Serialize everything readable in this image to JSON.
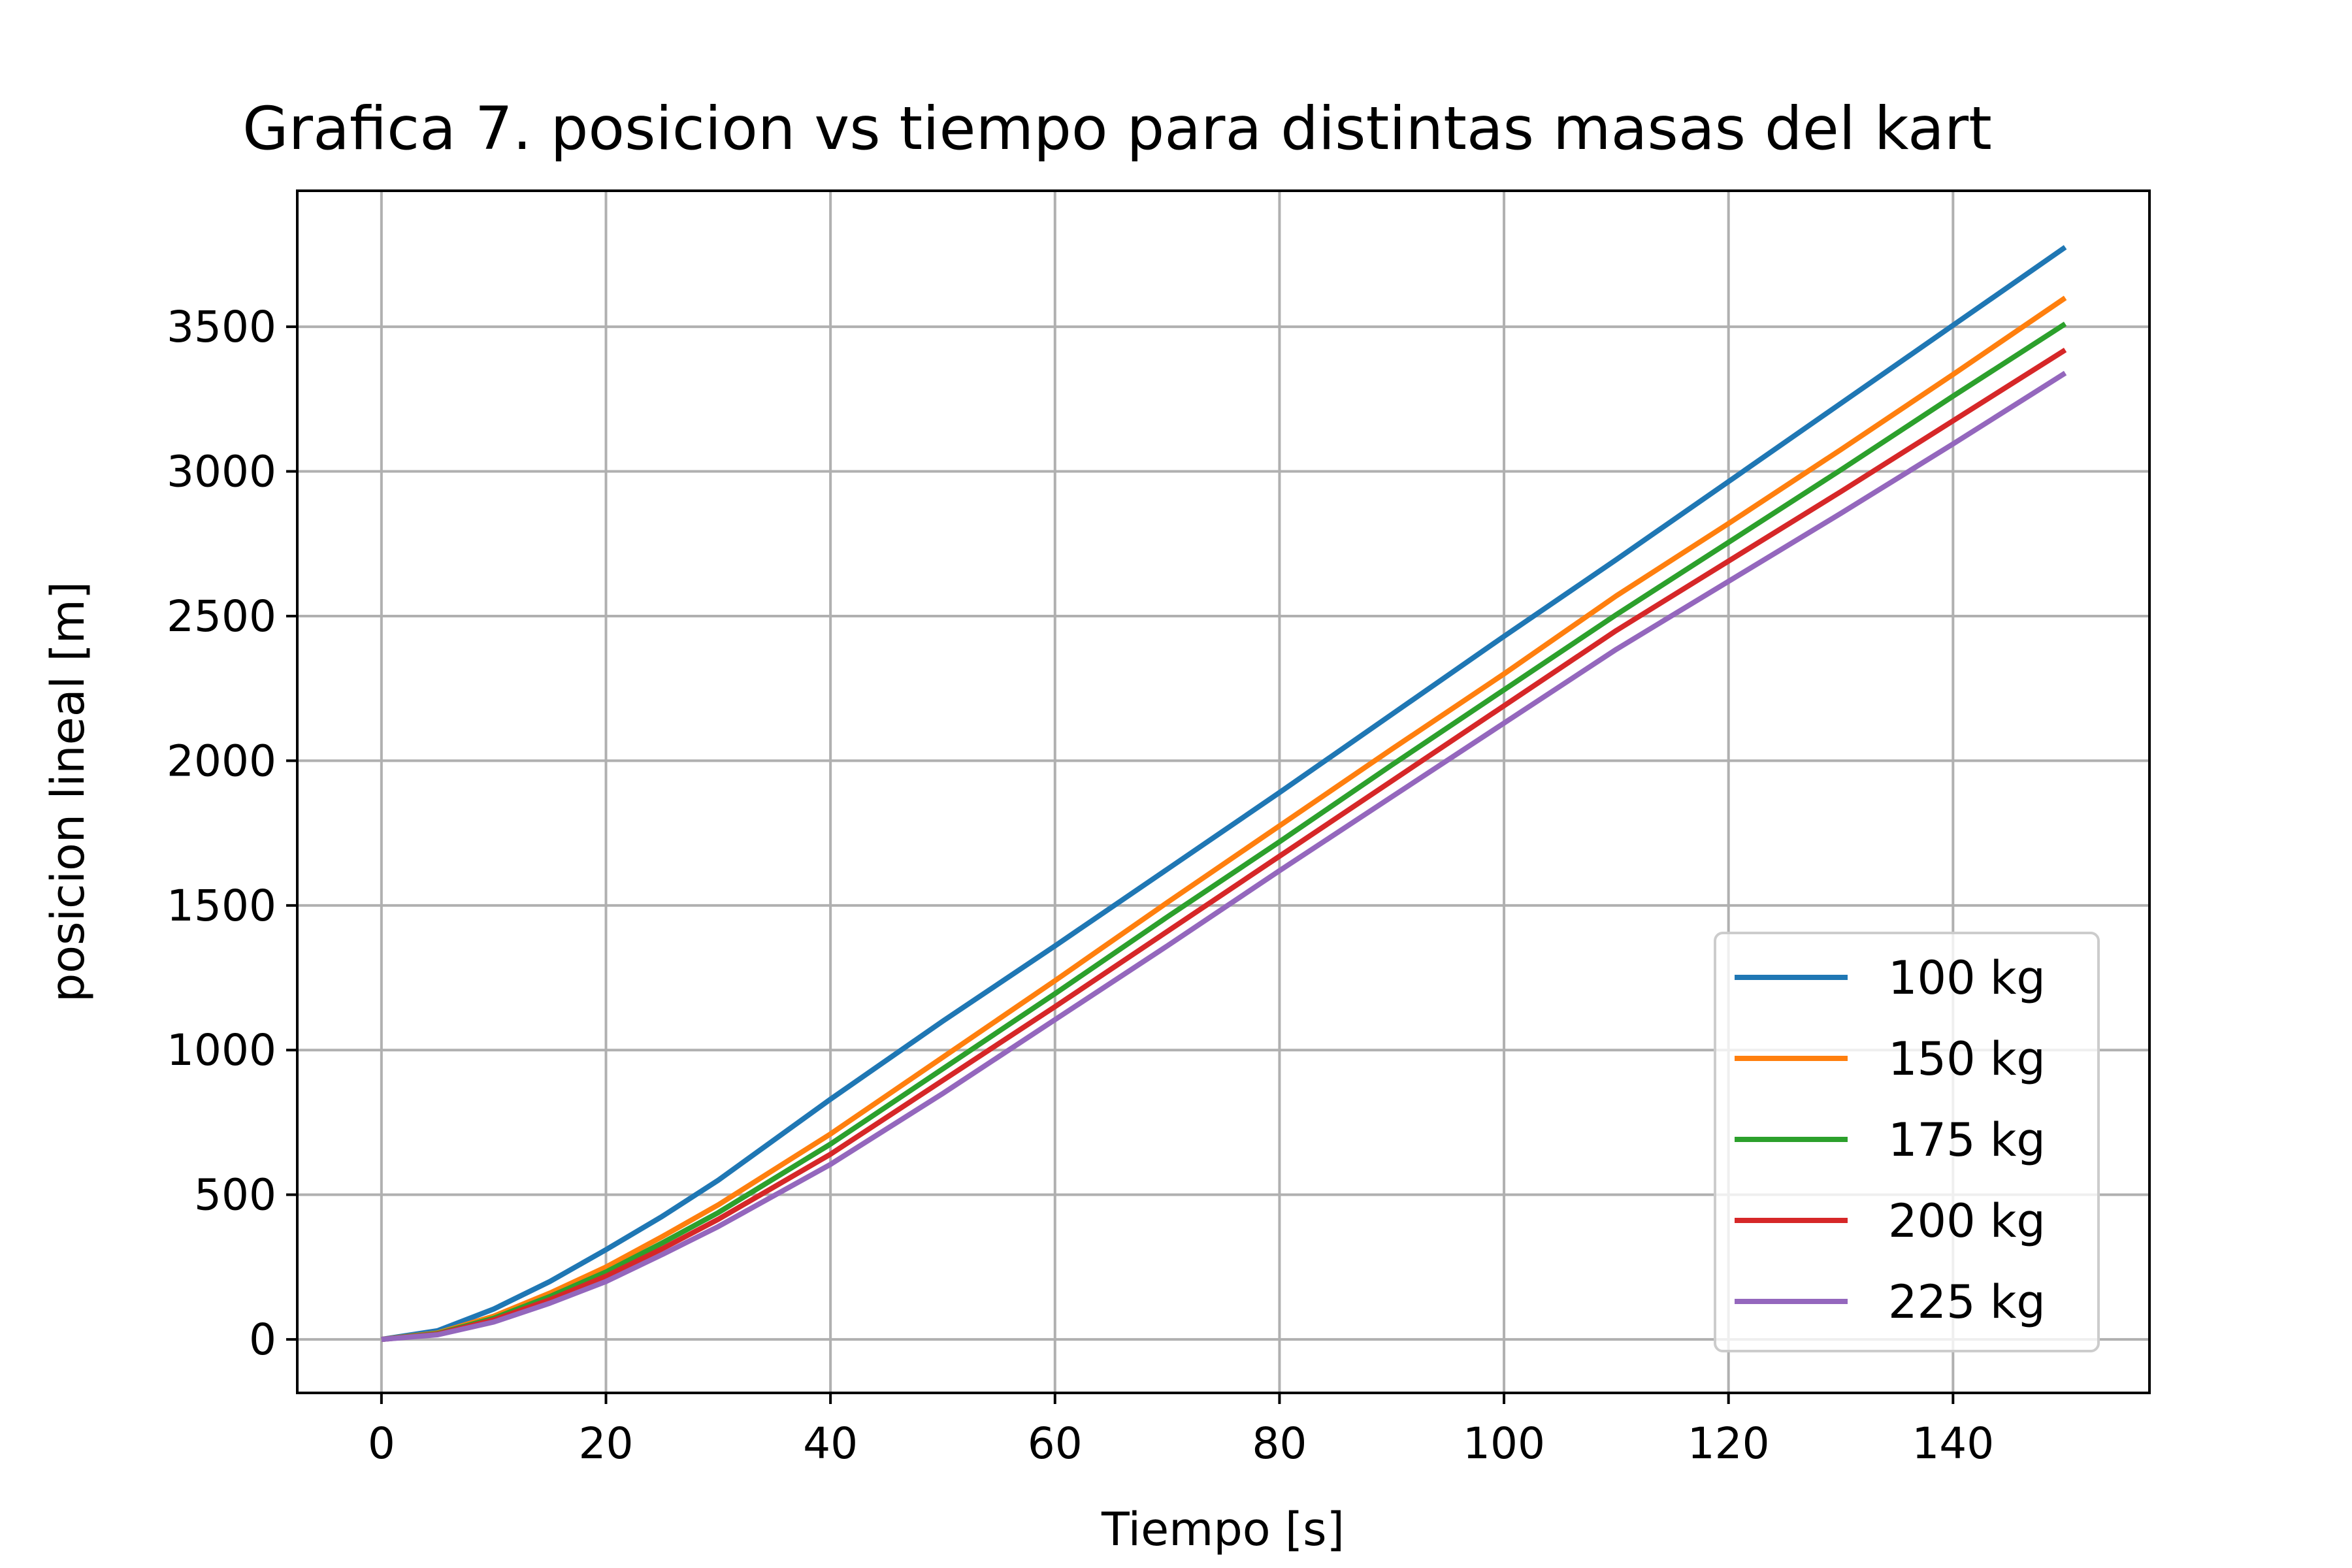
{
  "chart_data": {
    "type": "line",
    "title": "Grafica 7. posicion vs tiempo para distintas masas del kart",
    "xlabel": "Tiempo  [s]",
    "ylabel": "posicion lineal [m]",
    "xlim": [
      -7.5,
      157.5
    ],
    "ylim": [
      -185,
      3970
    ],
    "xticks": [
      0,
      20,
      40,
      60,
      80,
      100,
      120,
      140
    ],
    "yticks": [
      0,
      500,
      1000,
      1500,
      2000,
      2500,
      3000,
      3500
    ],
    "grid": true,
    "legend_position": "lower-right",
    "x": [
      0,
      5,
      10,
      15,
      20,
      25,
      30,
      40,
      50,
      60,
      70,
      80,
      90,
      100,
      110,
      120,
      130,
      140,
      150
    ],
    "series": [
      {
        "name": "100 kg",
        "color": "#1f77b4",
        "values": [
          0,
          30,
          105,
          200,
          310,
          425,
          550,
          830,
          1100,
          1360,
          1625,
          1890,
          2160,
          2430,
          2695,
          2965,
          3235,
          3505,
          3775
        ]
      },
      {
        "name": "150 kg",
        "color": "#ff7f0e",
        "values": [
          0,
          22,
          80,
          160,
          250,
          355,
          465,
          710,
          975,
          1240,
          1510,
          1775,
          2040,
          2300,
          2570,
          2820,
          3075,
          3335,
          3600
        ]
      },
      {
        "name": "175 kg",
        "color": "#2ca02c",
        "values": [
          0,
          20,
          73,
          148,
          233,
          333,
          438,
          675,
          935,
          1195,
          1460,
          1720,
          1985,
          2245,
          2505,
          2755,
          3005,
          3260,
          3510
        ]
      },
      {
        "name": "200 kg",
        "color": "#d62728",
        "values": [
          0,
          18,
          67,
          137,
          218,
          313,
          415,
          640,
          895,
          1150,
          1410,
          1670,
          1930,
          2190,
          2450,
          2690,
          2930,
          3175,
          3420
        ]
      },
      {
        "name": "225 kg",
        "color": "#9467bd",
        "values": [
          0,
          16,
          60,
          125,
          200,
          293,
          390,
          605,
          850,
          1105,
          1360,
          1620,
          1875,
          2130,
          2385,
          2620,
          2855,
          3095,
          3340
        ]
      }
    ]
  }
}
